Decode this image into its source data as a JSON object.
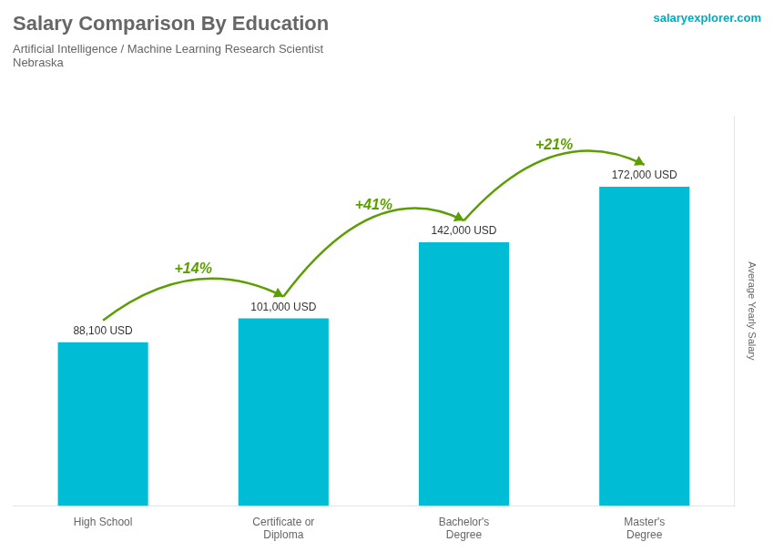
{
  "chart_data": {
    "type": "bar",
    "title": "Salary Comparison By Education",
    "subtitle": [
      "Artificial Intelligence / Machine Learning Research Scientist",
      "Nebraska"
    ],
    "ylabel": "Average Yearly Salary",
    "categories": [
      "High School",
      "Certificate or\nDiploma",
      "Bachelor's\nDegree",
      "Master's\nDegree"
    ],
    "values": [
      88100,
      101000,
      142000,
      172000
    ],
    "value_labels": [
      "88,100 USD",
      "101,000 USD",
      "142,000 USD",
      "172,000 USD"
    ],
    "data_labels": true,
    "color": "#00bcd4",
    "ylim": [
      0,
      210000
    ],
    "grid": false,
    "legend": false,
    "tick_labels": "x",
    "annotations": [
      {
        "text": "+14%",
        "from": 0,
        "to": 1
      },
      {
        "text": "+41%",
        "from": 1,
        "to": 2
      },
      {
        "text": "+21%",
        "from": 2,
        "to": 3
      },
      {
        "text": "salaryexplorer.com"
      }
    ]
  }
}
